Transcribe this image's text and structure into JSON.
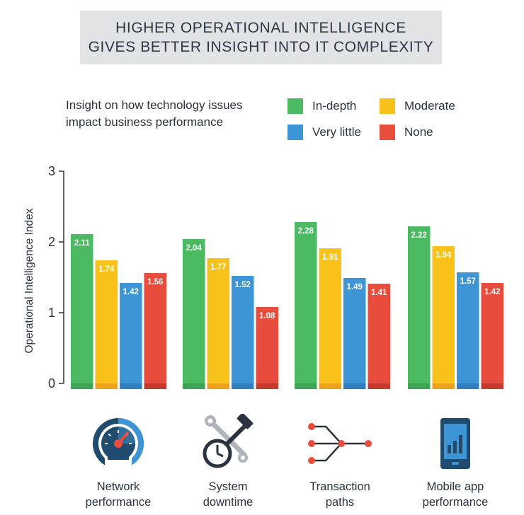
{
  "title": {
    "line1": "HIGHER OPERATIONAL INTELLIGENCE",
    "line2": "GIVES BETTER INSIGHT INTO IT COMPLEXITY"
  },
  "legend": {
    "description_line1": "Insight on how technology issues",
    "description_line2": "impact business performance",
    "items": [
      {
        "label": "In-depth",
        "color": "#4cba63"
      },
      {
        "label": "Moderate",
        "color": "#f8c21b"
      },
      {
        "label": "Very little",
        "color": "#3d95d6"
      },
      {
        "label": "None",
        "color": "#e84c3d"
      }
    ]
  },
  "categories": [
    {
      "line1": "Network",
      "line2": "performance",
      "icon": "speedometer-icon"
    },
    {
      "line1": "System",
      "line2": "downtime",
      "icon": "tools-clock-icon"
    },
    {
      "line1": "Transaction",
      "line2": "paths",
      "icon": "branching-paths-icon"
    },
    {
      "line1": "Mobile app",
      "line2": "performance",
      "icon": "mobile-chart-icon"
    }
  ],
  "chart_data": {
    "type": "bar",
    "title": "",
    "xlabel": "",
    "ylabel": "Operational Intelligence Index",
    "ylim": [
      0,
      3
    ],
    "yticks": [
      "0",
      "1",
      "2",
      "3"
    ],
    "categories": [
      "Network performance",
      "System downtime",
      "Transaction paths",
      "Mobile app performance"
    ],
    "series": [
      {
        "name": "In-depth",
        "color": "#4cba63",
        "values": [
          2.11,
          2.04,
          2.28,
          2.22
        ]
      },
      {
        "name": "Moderate",
        "color": "#f8c21b",
        "values": [
          1.74,
          1.77,
          1.91,
          1.94
        ]
      },
      {
        "name": "Very little",
        "color": "#3d95d6",
        "values": [
          1.42,
          1.52,
          1.49,
          1.57
        ]
      },
      {
        "name": "None",
        "color": "#e84c3d",
        "values": [
          1.56,
          1.08,
          1.41,
          1.42
        ]
      }
    ],
    "data_labels": [
      [
        "2.11",
        "1.74",
        "1.42",
        "1.56"
      ],
      [
        "2.04",
        "1.77",
        "1.52",
        "1.08"
      ],
      [
        "2.28",
        "1.91",
        "1.49",
        "1.41"
      ],
      [
        "2.22",
        "1.94",
        "1.57",
        "1.42"
      ]
    ],
    "grid": false,
    "legend_position": "top-right"
  }
}
